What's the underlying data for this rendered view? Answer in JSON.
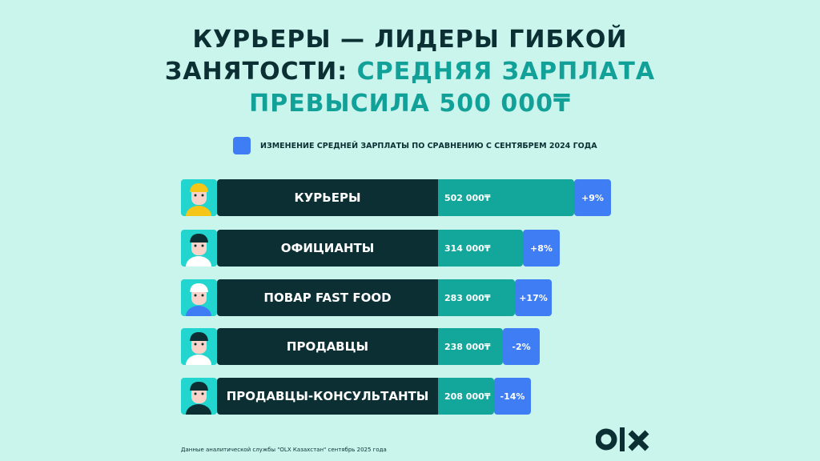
{
  "title": {
    "line1": "КУРЬЕРЫ — ЛИДЕРЫ ГИБКОЙ",
    "line2_dark": "ЗАНЯТОСТИ:",
    "line2_accent": "СРЕДНЯЯ ЗАРПЛАТА",
    "line3_accent": "ПРЕВЫСИЛА 500 000₸"
  },
  "legend": {
    "label": "ИЗМЕНЕНИЕ СРЕДНЕЙ ЗАРПЛАТЫ ПО СРАВНЕНИЮ С СЕНТЯБРЕМ 2024 ГОДА",
    "color": "#3f7df5"
  },
  "chart_data": {
    "type": "bar",
    "orientation": "horizontal",
    "categories": [
      "КУРЬЕРЫ",
      "ОФИЦИАНТЫ",
      "ПОВАР FAST FOOD",
      "ПРОДАВЦЫ",
      "ПРОДАВЦЫ-КОНСУЛЬТАНТЫ"
    ],
    "values": [
      502000,
      314000,
      283000,
      238000,
      208000
    ],
    "value_labels": [
      "502 000₸",
      "314 000₸",
      "283 000₸",
      "238 000₸",
      "208 000₸"
    ],
    "change_labels": [
      "+9%",
      "+8%",
      "+17%",
      "-2%",
      "-14%"
    ],
    "changes": [
      9,
      8,
      17,
      -2,
      -14
    ],
    "avatars": [
      "courier",
      "waiter",
      "chef",
      "seller",
      "consultant"
    ],
    "colors": {
      "label_bg": "#0b2f33",
      "bar": "#12a79a",
      "change": "#3f7df5",
      "avatar_bg": "#23d5cf"
    }
  },
  "footnote": "Данные аналитической службы \"OLX Казахстан\" сентябрь 2025 года",
  "logo": "OLX"
}
